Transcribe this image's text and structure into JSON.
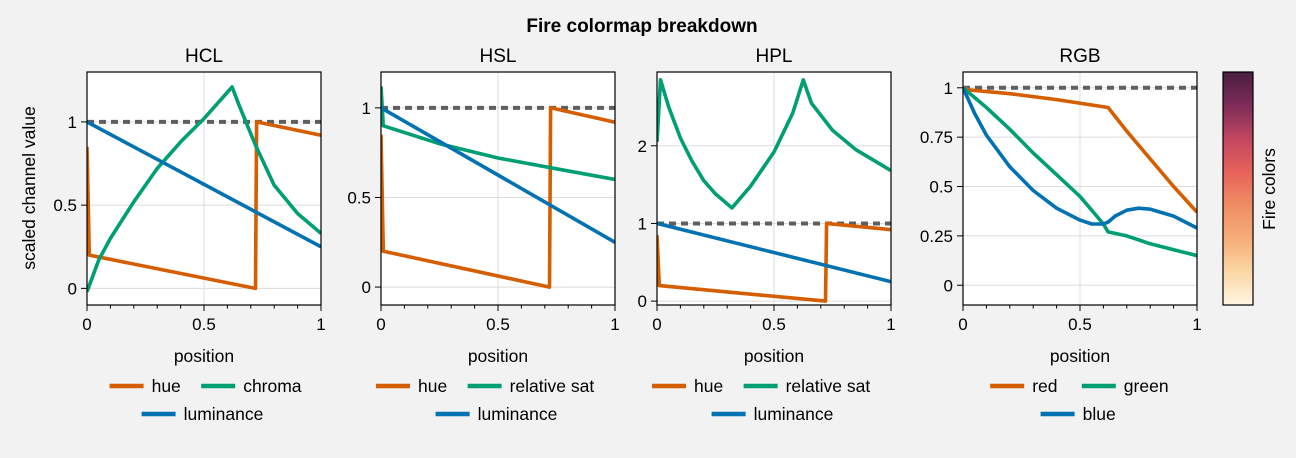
{
  "figure": {
    "suptitle": "Fire colormap breakdown",
    "ylabel": "scaled channel value",
    "colorbar_label": "Fire colors"
  },
  "colors": {
    "hue": "#d55e00",
    "chroma": "#009e73",
    "luminance": "#0072b2",
    "reference": "#5f5f5f",
    "grid": "#dcdcdc"
  },
  "colorbar": {
    "stops": [
      "#fff5e4",
      "#fbd7a4",
      "#f6ad78",
      "#ef8d64",
      "#e6625a",
      "#c24661",
      "#7d2c58",
      "#4a1f3f"
    ]
  },
  "chart_data": [
    {
      "type": "line",
      "title": "HCL",
      "xlabel": "position",
      "xlim": [
        0,
        1
      ],
      "ylim": [
        -0.1,
        1.3
      ],
      "xticks": [
        "0",
        "0.5",
        "1"
      ],
      "yticks": [
        "0",
        "0.5",
        "1"
      ],
      "reference_line": 1,
      "legend": [
        "hue",
        "chroma",
        "luminance"
      ],
      "series": [
        {
          "name": "hue",
          "x": [
            0,
            0.01,
            0.72,
            0.725,
            1
          ],
          "y": [
            0.85,
            0.2,
            0,
            1.0,
            0.92
          ]
        },
        {
          "name": "chroma",
          "x": [
            0,
            0.05,
            0.1,
            0.2,
            0.3,
            0.4,
            0.5,
            0.62,
            0.65,
            0.72,
            0.8,
            0.9,
            1
          ],
          "y": [
            -0.02,
            0.17,
            0.3,
            0.52,
            0.72,
            0.88,
            1.02,
            1.21,
            1.1,
            0.86,
            0.62,
            0.45,
            0.33
          ]
        },
        {
          "name": "luminance",
          "x": [
            0,
            1
          ],
          "y": [
            1.0,
            0.25
          ]
        }
      ]
    },
    {
      "type": "line",
      "title": "HSL",
      "xlabel": "position",
      "xlim": [
        0,
        1
      ],
      "ylim": [
        -0.1,
        1.2
      ],
      "xticks": [
        "0",
        "0.5",
        "1"
      ],
      "yticks": [
        "0",
        "0.5",
        "1"
      ],
      "reference_line": 1,
      "legend": [
        "hue",
        "relative sat",
        "luminance"
      ],
      "series": [
        {
          "name": "hue",
          "x": [
            0,
            0.01,
            0.72,
            0.725,
            1
          ],
          "y": [
            0.85,
            0.2,
            0,
            1.0,
            0.92
          ]
        },
        {
          "name": "relative sat",
          "x": [
            0,
            0.01,
            0.25,
            0.5,
            0.75,
            1
          ],
          "y": [
            1.12,
            0.9,
            0.8,
            0.72,
            0.66,
            0.6
          ]
        },
        {
          "name": "luminance",
          "x": [
            0,
            1
          ],
          "y": [
            1.0,
            0.25
          ]
        }
      ]
    },
    {
      "type": "line",
      "title": "HPL",
      "xlabel": "position",
      "xlim": [
        0,
        1
      ],
      "ylim": [
        -0.05,
        2.95
      ],
      "xticks": [
        "0",
        "0.5",
        "1"
      ],
      "yticks": [
        "0",
        "1",
        "2"
      ],
      "reference_line": 1,
      "legend": [
        "hue",
        "relative sat",
        "luminance"
      ],
      "series": [
        {
          "name": "hue",
          "x": [
            0,
            0.01,
            0.72,
            0.725,
            1
          ],
          "y": [
            0.85,
            0.2,
            0,
            1.0,
            0.92
          ]
        },
        {
          "name": "relative sat",
          "x": [
            0,
            0.015,
            0.05,
            0.1,
            0.15,
            0.2,
            0.25,
            0.32,
            0.4,
            0.5,
            0.58,
            0.625,
            0.66,
            0.75,
            0.85,
            1
          ],
          "y": [
            2.05,
            2.85,
            2.5,
            2.1,
            1.8,
            1.55,
            1.38,
            1.2,
            1.48,
            1.92,
            2.42,
            2.85,
            2.55,
            2.2,
            1.95,
            1.68
          ]
        },
        {
          "name": "luminance",
          "x": [
            0,
            1
          ],
          "y": [
            1.0,
            0.25
          ]
        }
      ]
    },
    {
      "type": "line",
      "title": "RGB",
      "xlabel": "position",
      "xlim": [
        0,
        1
      ],
      "ylim": [
        -0.1,
        1.08
      ],
      "xticks": [
        "0",
        "0.5",
        "1"
      ],
      "yticks": [
        "0",
        "0.25",
        "0.5",
        "0.75",
        "1"
      ],
      "reference_line": 1,
      "legend": [
        "red",
        "green",
        "blue"
      ],
      "series": [
        {
          "name": "red",
          "x": [
            0,
            0.02,
            0.2,
            0.4,
            0.62,
            0.7,
            0.8,
            0.9,
            1
          ],
          "y": [
            1.0,
            0.99,
            0.97,
            0.94,
            0.9,
            0.78,
            0.64,
            0.5,
            0.37
          ]
        },
        {
          "name": "green",
          "x": [
            0,
            0.1,
            0.2,
            0.3,
            0.4,
            0.5,
            0.6,
            0.62,
            0.7,
            0.8,
            0.9,
            1
          ],
          "y": [
            1.0,
            0.9,
            0.79,
            0.67,
            0.56,
            0.45,
            0.31,
            0.27,
            0.25,
            0.21,
            0.18,
            0.15
          ]
        },
        {
          "name": "blue",
          "x": [
            0,
            0.05,
            0.1,
            0.2,
            0.3,
            0.4,
            0.5,
            0.55,
            0.6,
            0.62,
            0.65,
            0.7,
            0.75,
            0.8,
            0.9,
            1
          ],
          "y": [
            1.0,
            0.87,
            0.76,
            0.6,
            0.48,
            0.39,
            0.33,
            0.31,
            0.31,
            0.32,
            0.35,
            0.38,
            0.39,
            0.385,
            0.35,
            0.29
          ]
        }
      ]
    }
  ]
}
